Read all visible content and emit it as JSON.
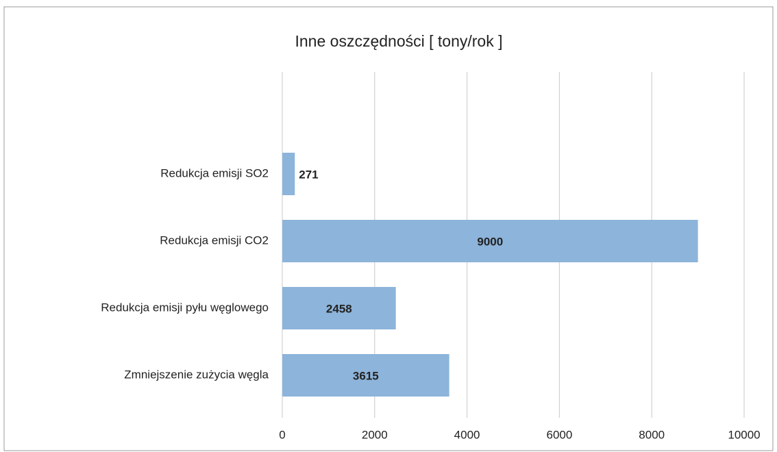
{
  "chart_data": {
    "type": "bar",
    "orientation": "horizontal",
    "title": "Inne oszczędności [ tony/rok ]",
    "categories": [
      "Redukcja emisji SO2",
      "Redukcja emisji CO2",
      "Redukcja emisji pyłu węglowego",
      "Zmniejszenie zużycia węgla"
    ],
    "values": [
      271,
      9000,
      2458,
      3615
    ],
    "color": "#8db4da",
    "xlim": [
      0,
      10000
    ],
    "xticks": [
      0,
      2000,
      4000,
      6000,
      8000,
      10000
    ],
    "grid": true
  }
}
